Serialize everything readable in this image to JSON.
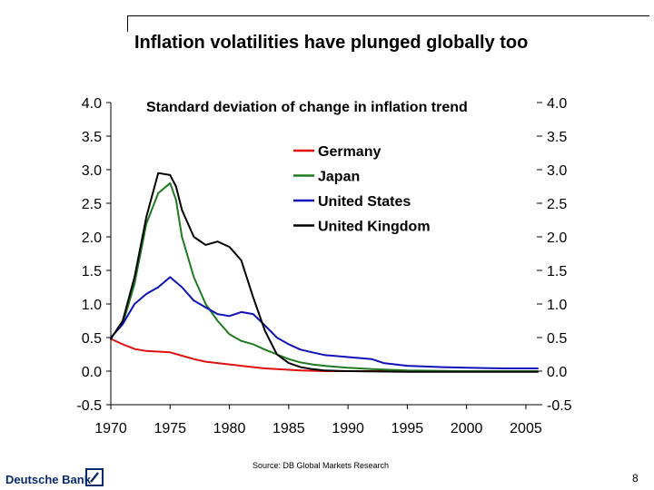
{
  "slide": {
    "title": "Inflation volatilities have plunged globally too",
    "source": "Source: DB Global Markets Research",
    "logo_text": "Deutsche Bank",
    "page_number": "8"
  },
  "chart_data": {
    "type": "line",
    "title": "Standard deviation of change in inflation trend",
    "xlabel": "",
    "ylabel": "",
    "xlim": [
      1970,
      2006
    ],
    "ylim": [
      -0.5,
      4.0
    ],
    "x_ticks": [
      "1970",
      "1975",
      "1980",
      "1985",
      "1990",
      "1995",
      "2000",
      "2005"
    ],
    "y_ticks": [
      "4.0",
      "3.5",
      "3.0",
      "2.5",
      "2.0",
      "1.5",
      "1.0",
      "0.5",
      "0.0",
      "-0.5"
    ],
    "y_ticks_right": [
      "4.0",
      "3.5",
      "3.0",
      "2.5",
      "2.0",
      "1.5",
      "1.0",
      "0.5",
      "0.0",
      "-0.5"
    ],
    "legend_position": "top-center",
    "grid": false,
    "series": [
      {
        "name": "Germany",
        "color": "#e01010",
        "points": [
          [
            1970,
            0.48
          ],
          [
            1971,
            0.4
          ],
          [
            1972,
            0.33
          ],
          [
            1973,
            0.3
          ],
          [
            1974,
            0.29
          ],
          [
            1975,
            0.28
          ],
          [
            1976,
            0.23
          ],
          [
            1977,
            0.18
          ],
          [
            1978,
            0.14
          ],
          [
            1979,
            0.12
          ],
          [
            1980,
            0.1
          ],
          [
            1981,
            0.08
          ],
          [
            1982,
            0.06
          ],
          [
            1983,
            0.04
          ],
          [
            1984,
            0.03
          ],
          [
            1985,
            0.02
          ],
          [
            1986,
            0.01
          ],
          [
            1988,
            0.0
          ],
          [
            1990,
            0.0
          ],
          [
            1995,
            0.0
          ],
          [
            2000,
            0.0
          ],
          [
            2006,
            0.0
          ]
        ]
      },
      {
        "name": "Japan",
        "color": "#1f7a1f",
        "points": [
          [
            1970,
            0.5
          ],
          [
            1971,
            0.7
          ],
          [
            1972,
            1.3
          ],
          [
            1973,
            2.2
          ],
          [
            1974,
            2.65
          ],
          [
            1975,
            2.8
          ],
          [
            1975.5,
            2.55
          ],
          [
            1976,
            2.0
          ],
          [
            1977,
            1.4
          ],
          [
            1978,
            1.0
          ],
          [
            1979,
            0.75
          ],
          [
            1980,
            0.55
          ],
          [
            1981,
            0.45
          ],
          [
            1982,
            0.4
          ],
          [
            1983,
            0.32
          ],
          [
            1984,
            0.25
          ],
          [
            1985,
            0.18
          ],
          [
            1986,
            0.13
          ],
          [
            1987,
            0.1
          ],
          [
            1988,
            0.08
          ],
          [
            1990,
            0.05
          ],
          [
            1992,
            0.03
          ],
          [
            1995,
            0.01
          ],
          [
            2000,
            0.0
          ],
          [
            2006,
            0.0
          ]
        ]
      },
      {
        "name": "United States",
        "color": "#1010b8",
        "points": [
          [
            1970,
            0.5
          ],
          [
            1971,
            0.7
          ],
          [
            1972,
            1.0
          ],
          [
            1973,
            1.15
          ],
          [
            1974,
            1.25
          ],
          [
            1975,
            1.4
          ],
          [
            1976,
            1.25
          ],
          [
            1977,
            1.05
          ],
          [
            1978,
            0.95
          ],
          [
            1979,
            0.85
          ],
          [
            1980,
            0.82
          ],
          [
            1981,
            0.88
          ],
          [
            1982,
            0.85
          ],
          [
            1983,
            0.68
          ],
          [
            1984,
            0.5
          ],
          [
            1985,
            0.4
          ],
          [
            1986,
            0.32
          ],
          [
            1987,
            0.28
          ],
          [
            1988,
            0.24
          ],
          [
            1990,
            0.21
          ],
          [
            1992,
            0.18
          ],
          [
            1993,
            0.12
          ],
          [
            1995,
            0.08
          ],
          [
            1998,
            0.06
          ],
          [
            2000,
            0.05
          ],
          [
            2003,
            0.04
          ],
          [
            2006,
            0.04
          ]
        ]
      },
      {
        "name": "United Kingdom",
        "color": "#000000",
        "points": [
          [
            1970,
            0.48
          ],
          [
            1971,
            0.75
          ],
          [
            1972,
            1.4
          ],
          [
            1973,
            2.3
          ],
          [
            1974,
            2.95
          ],
          [
            1975,
            2.92
          ],
          [
            1975.5,
            2.75
          ],
          [
            1976,
            2.4
          ],
          [
            1977,
            2.0
          ],
          [
            1978,
            1.88
          ],
          [
            1979,
            1.93
          ],
          [
            1980,
            1.85
          ],
          [
            1981,
            1.65
          ],
          [
            1982,
            1.1
          ],
          [
            1983,
            0.6
          ],
          [
            1984,
            0.25
          ],
          [
            1985,
            0.12
          ],
          [
            1986,
            0.06
          ],
          [
            1987,
            0.03
          ],
          [
            1988,
            0.01
          ],
          [
            1990,
            0.0
          ],
          [
            1995,
            -0.01
          ],
          [
            2000,
            -0.01
          ],
          [
            2006,
            -0.01
          ]
        ]
      }
    ]
  }
}
